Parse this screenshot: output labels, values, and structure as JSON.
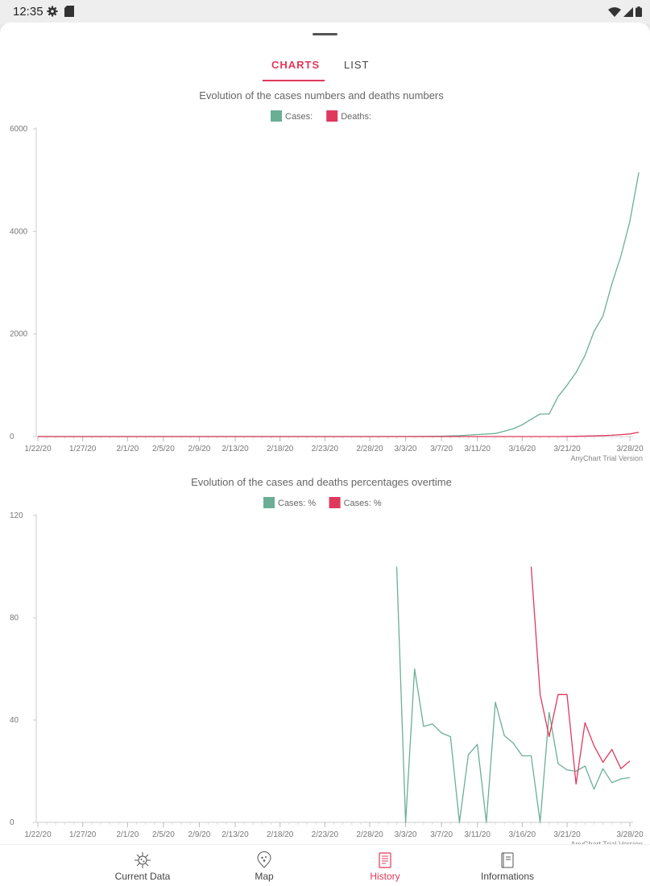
{
  "status_bar": {
    "time": "12:35"
  },
  "tabs": [
    {
      "label": "CHARTS",
      "active": true
    },
    {
      "label": "LIST",
      "active": false
    }
  ],
  "charts_common": {
    "x_categories": [
      "1/22/20",
      "1/27/20",
      "2/1/20",
      "2/5/20",
      "2/9/20",
      "2/13/20",
      "2/18/20",
      "2/23/20",
      "2/28/20",
      "3/3/20",
      "3/7/20",
      "3/11/20",
      "3/16/20",
      "3/21/20",
      "3/28/20"
    ],
    "watermark": "AnyChart Trial Version"
  },
  "chart_data": [
    {
      "type": "line",
      "title": "Evolution of the cases numbers and deaths numbers",
      "ylim": [
        0,
        6000
      ],
      "yticks": [
        0,
        2000,
        4000,
        6000
      ],
      "xlim": [
        "1/22/20",
        "3/28/20"
      ],
      "legend_position": "top-center",
      "grid": false,
      "series": [
        {
          "name": "Cases:",
          "color": "#6aaf95",
          "points": [
            [
              "1/22/20",
              0
            ],
            [
              "2/28/20",
              0
            ],
            [
              "3/3/20",
              1
            ],
            [
              "3/5/20",
              3
            ],
            [
              "3/7/20",
              8
            ],
            [
              "3/9/20",
              18
            ],
            [
              "3/11/20",
              40
            ],
            [
              "3/13/20",
              60
            ],
            [
              "3/15/20",
              150
            ],
            [
              "3/16/20",
              230
            ],
            [
              "3/17/20",
              340
            ],
            [
              "3/18/20",
              440
            ],
            [
              "3/19/20",
              440
            ],
            [
              "3/20/20",
              780
            ],
            [
              "3/21/20",
              1000
            ],
            [
              "3/22/20",
              1250
            ],
            [
              "3/23/20",
              1580
            ],
            [
              "3/24/20",
              2050
            ],
            [
              "3/25/20",
              2350
            ],
            [
              "3/26/20",
              2980
            ],
            [
              "3/27/20",
              3520
            ],
            [
              "3/28/20",
              4200
            ],
            [
              "3/29/20",
              5150
            ]
          ]
        },
        {
          "name": "Deaths:",
          "color": "#e0385b",
          "points": [
            [
              "1/22/20",
              0
            ],
            [
              "3/20/20",
              0
            ],
            [
              "3/22/20",
              5
            ],
            [
              "3/24/20",
              12
            ],
            [
              "3/26/20",
              25
            ],
            [
              "3/28/20",
              50
            ],
            [
              "3/29/20",
              85
            ]
          ]
        }
      ]
    },
    {
      "type": "line",
      "title": "Evolution of the cases and deaths percentages overtime",
      "ylim": [
        0,
        120
      ],
      "yticks": [
        0,
        40,
        80,
        120
      ],
      "xlim": [
        "1/22/20",
        "3/28/20"
      ],
      "legend_position": "top-center",
      "grid": false,
      "series": [
        {
          "name": "Cases: %",
          "color": "#6aaf95",
          "points": [
            [
              "3/2/20",
              100
            ],
            [
              "3/3/20",
              0
            ],
            [
              "3/4/20",
              60
            ],
            [
              "3/5/20",
              37.5
            ],
            [
              "3/6/20",
              38.5
            ],
            [
              "3/7/20",
              35
            ],
            [
              "3/8/20",
              33.5
            ],
            [
              "3/9/20",
              0
            ],
            [
              "3/10/20",
              26.5
            ],
            [
              "3/11/20",
              30.5
            ],
            [
              "3/12/20",
              0
            ],
            [
              "3/13/20",
              47
            ],
            [
              "3/14/20",
              34
            ],
            [
              "3/15/20",
              31
            ],
            [
              "3/16/20",
              26
            ],
            [
              "3/17/20",
              26
            ],
            [
              "3/18/20",
              0
            ],
            [
              "3/19/20",
              43
            ],
            [
              "3/20/20",
              23
            ],
            [
              "3/21/20",
              20.5
            ],
            [
              "3/22/20",
              20
            ],
            [
              "3/23/20",
              22
            ],
            [
              "3/24/20",
              13
            ],
            [
              "3/25/20",
              21
            ],
            [
              "3/26/20",
              15.5
            ],
            [
              "3/27/20",
              17
            ],
            [
              "3/28/20",
              17.5
            ]
          ]
        },
        {
          "name": "Cases: %",
          "color": "#e0385b",
          "points": [
            [
              "3/17/20",
              100
            ],
            [
              "3/18/20",
              50
            ],
            [
              "3/19/20",
              33.5
            ],
            [
              "3/20/20",
              50
            ],
            [
              "3/21/20",
              50
            ],
            [
              "3/22/20",
              15
            ],
            [
              "3/23/20",
              39
            ],
            [
              "3/24/20",
              30
            ],
            [
              "3/25/20",
              23.5
            ],
            [
              "3/26/20",
              28.5
            ],
            [
              "3/27/20",
              21
            ],
            [
              "3/28/20",
              24
            ]
          ]
        }
      ]
    }
  ],
  "bottom_nav": [
    {
      "label": "Current Data",
      "icon": "virus-icon",
      "active": false
    },
    {
      "label": "Map",
      "icon": "map-pin-icon",
      "active": false
    },
    {
      "label": "History",
      "icon": "history-icon",
      "active": true
    },
    {
      "label": "Informations",
      "icon": "book-icon",
      "active": false
    }
  ],
  "colors": {
    "accent": "#e0385b",
    "cases": "#6aaf95",
    "deaths": "#e0385b"
  }
}
